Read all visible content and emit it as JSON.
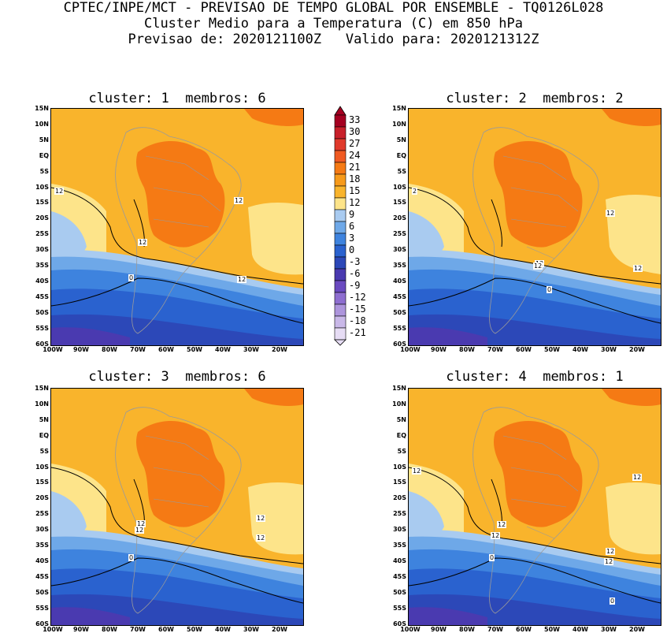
{
  "header": {
    "line1": "CPTEC/INPE/MCT - PREVISAO DE TEMPO GLOBAL POR ENSEMBLE - TQ0126L028",
    "line2": "Cluster Medio para a Temperatura (C) em 850 hPa",
    "line3": "Previsao de: 2020121100Z   Valido para: 2020121312Z"
  },
  "panels": [
    {
      "title": "cluster: 1  membros: 6",
      "contour_labels": [
        "12",
        "12",
        "12",
        "12",
        "0"
      ]
    },
    {
      "title": "cluster: 2  membros: 2",
      "contour_labels": [
        "2",
        "12",
        "12",
        "12",
        "12",
        "0"
      ]
    },
    {
      "title": "cluster: 3  membros: 6",
      "contour_labels": [
        "12",
        "12",
        "12",
        "12",
        "0"
      ]
    },
    {
      "title": "cluster: 4  membros: 1",
      "contour_labels": [
        "12",
        "12",
        "12",
        "12",
        "12",
        "12",
        "0",
        "0"
      ]
    }
  ],
  "axes": {
    "lat_labels": [
      "15N",
      "10N",
      "5N",
      "EQ",
      "5S",
      "10S",
      "15S",
      "20S",
      "25S",
      "30S",
      "35S",
      "40S",
      "45S",
      "50S",
      "55S",
      "60S"
    ],
    "lon_labels": [
      "100W",
      "90W",
      "80W",
      "70W",
      "60W",
      "50W",
      "40W",
      "30W",
      "20W"
    ]
  },
  "colorbar": {
    "levels": [
      "33",
      "30",
      "27",
      "24",
      "21",
      "18",
      "15",
      "12",
      "9",
      "6",
      "3",
      "0",
      "-3",
      "-6",
      "-9",
      "-12",
      "-15",
      "-18",
      "-21"
    ],
    "colors": [
      "#a50021",
      "#c8202a",
      "#e03a2c",
      "#f05a22",
      "#f57a14",
      "#f79a1a",
      "#f9b42c",
      "#fde48a",
      "#a9cbf0",
      "#6ea8e8",
      "#3e83de",
      "#2a62cf",
      "#2c48b8",
      "#4a3ab0",
      "#6a4ac0",
      "#8e6ed0",
      "#ad95dc",
      "#c9b8e8",
      "#e6dcf4"
    ]
  }
}
